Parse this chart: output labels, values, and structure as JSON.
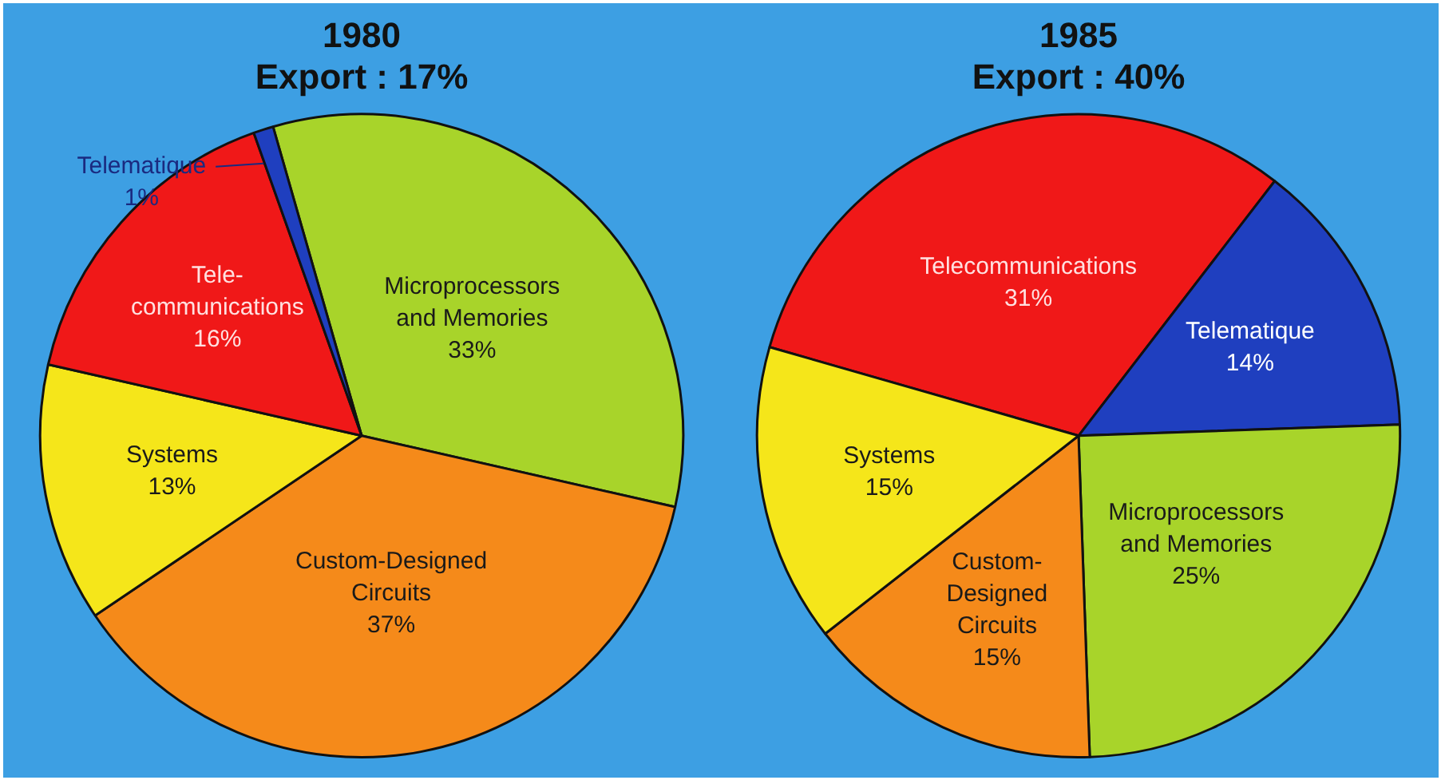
{
  "chart_data": [
    {
      "type": "pie",
      "title": "1980",
      "subtitle": "Export : 17%",
      "categories": [
        "Microprocessors\nand Memories",
        "Custom-Designed\nCircuits",
        "Systems",
        "Tele-\ncommunications",
        "Telematique"
      ],
      "values": [
        33,
        37,
        13,
        16,
        1
      ],
      "value_labels": [
        "33%",
        "37%",
        "13%",
        "16%",
        "1%"
      ],
      "colors": [
        "#a8d42a",
        "#f58a1a",
        "#f5e61a",
        "#f01818",
        "#1f3fbf"
      ],
      "legend": false
    },
    {
      "type": "pie",
      "title": "1985",
      "subtitle": "Export : 40%",
      "categories": [
        "Telecommunications",
        "Telematique",
        "Microprocessors\nand Memories",
        "Custom-\nDesigned\nCircuits",
        "Systems"
      ],
      "values": [
        31,
        14,
        25,
        15,
        15
      ],
      "value_labels": [
        "31%",
        "14%",
        "25%",
        "15%",
        "15%"
      ],
      "colors": [
        "#f01818",
        "#1f3fbf",
        "#a8d42a",
        "#f58a1a",
        "#f5e61a"
      ],
      "legend": false
    }
  ]
}
